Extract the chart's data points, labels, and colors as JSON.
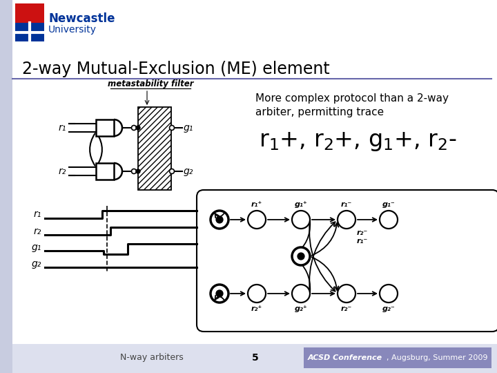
{
  "title": "2-way Mutual-Exclusion (ME) element",
  "bg_color": "#dde0ee",
  "slide_bg": "#ffffff",
  "sidebar_color": "#c8cce0",
  "footer_left": "N-way arbiters",
  "footer_center": "5",
  "footer_bg": "#8888bb",
  "text_right1": "More complex protocol than a 2-way",
  "text_right2": "arbiter, permitting trace",
  "metastability_label": "metastability filter",
  "title_line_color": "#6666aa",
  "newcastle_blue": "#003399",
  "newcastle_text": "#003399"
}
